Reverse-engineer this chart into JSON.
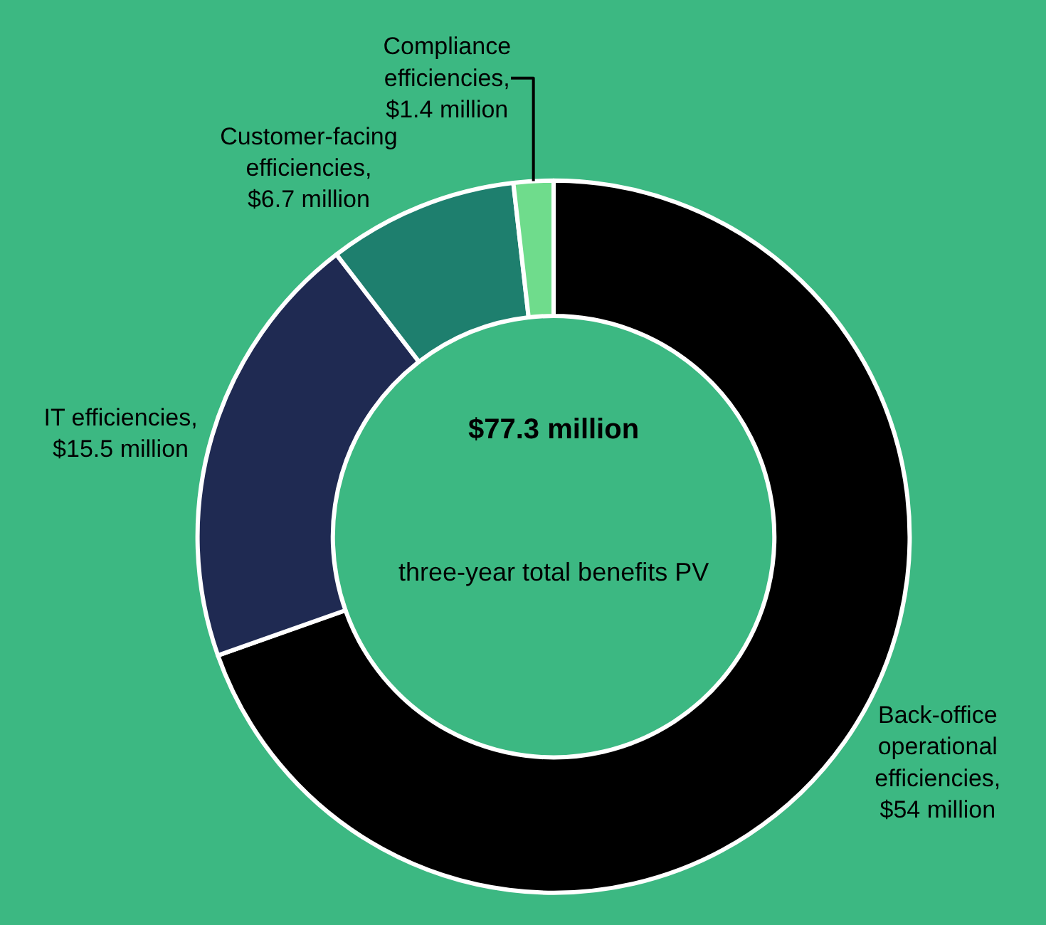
{
  "chart_data": {
    "type": "donut",
    "categories": [
      "Back-office operational efficiencies, $54 million",
      "IT efficiencies, $15.5 million",
      "Customer-facing efficiencies, $6.7 million",
      "Compliance efficiencies, $1.4 million"
    ],
    "values": [
      54,
      15.5,
      6.7,
      1.4
    ],
    "colors": [
      "#000000",
      "#1f2a52",
      "#1e7f6e",
      "#6fdc8c"
    ],
    "annotations": [
      "$77.3 million",
      "three-year total benefits PV"
    ],
    "legend": false
  }
}
